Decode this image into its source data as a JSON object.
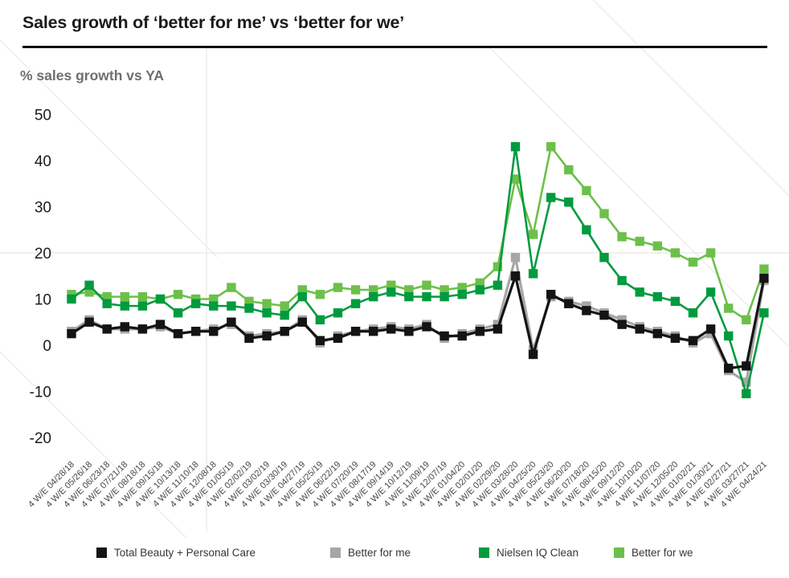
{
  "header": {
    "title": "Sales growth of ‘better for me’ vs ‘better for we’"
  },
  "chart_data": {
    "type": "line",
    "title": "Sales growth of ‘better for me’ vs ‘better for we’",
    "ylabel": "% sales growth vs YA",
    "xlabel": "",
    "ylim": [
      -20,
      50
    ],
    "yticks": [
      50,
      40,
      30,
      20,
      10,
      0,
      -10,
      -20
    ],
    "gridline_values": [
      20
    ],
    "grid": "single horizontal gridline at 20",
    "legend_position": "bottom",
    "marker": "square",
    "categories": [
      "4 W/E 04/28/18",
      "4 W/E 05/26/18",
      "4 W/E 06/23/18",
      "4 W/E 07/21/18",
      "4 W/E 08/18/18",
      "4 W/E 09/15/18",
      "4 W/E 10/13/18",
      "4 W/E 11/10/18",
      "4 W/E 12/08/18",
      "4 W/E 01/05/19",
      "4 W/E 02/02/19",
      "4 W/E 03/02/19",
      "4 W/E 03/30/19",
      "4 W/E 04/27/19",
      "4 W/E 05/25/19",
      "4 W/E 06/22/19",
      "4 W/E 07/20/19",
      "4 W/E 08/17/19",
      "4 W/E 09/14/19",
      "4 W/E 10/12/19",
      "4 W/E 11/09/19",
      "4 W/E 12/07/19",
      "4 W/E 01/04/20",
      "4 W/E 02/01/20",
      "4 W/E 02/29/20",
      "4 W/E 03/28/20",
      "4 W/E 04/25/20",
      "4 W/E 05/23/20",
      "4 W/E 06/20/20",
      "4 W/E 07/18/20",
      "4 W/E 08/15/20",
      "4 W/E 09/12/20",
      "4 W/E 10/10/20",
      "4 W/E 11/07/20",
      "4 W/E 12/05/20",
      "4 W/E 01/02/21",
      "4 W/E 01/30/21",
      "4 W/E 02/27/21",
      "4 W/E 03/27/21",
      "4 W/E 04/24/21"
    ],
    "series": [
      {
        "name": "Total Beauty + Personal Care",
        "color": "#141414",
        "values": [
          2.5,
          5,
          3.5,
          4,
          3.5,
          4.5,
          2.5,
          3,
          3,
          5,
          1.5,
          2,
          3,
          5,
          1,
          1.5,
          3,
          3,
          3.5,
          3,
          4,
          2,
          2,
          3,
          3.5,
          15,
          -2,
          11,
          9,
          7.5,
          6.5,
          4.5,
          3.5,
          2.5,
          1.5,
          1,
          3.5,
          -5,
          -4.5,
          14.5
        ]
      },
      {
        "name": "Better for me",
        "color": "#a6a6a6",
        "values": [
          3,
          5.5,
          3.5,
          3.5,
          3.5,
          4,
          2.5,
          3,
          3.5,
          4.5,
          2,
          2.5,
          3,
          5.5,
          0.5,
          2,
          3,
          3.5,
          4,
          3.5,
          4.5,
          1.5,
          2.5,
          3.5,
          4.5,
          19,
          -1,
          10.5,
          9.5,
          8.5,
          7,
          5.5,
          4,
          3,
          2,
          0.5,
          2.5,
          -5.5,
          -8,
          14
        ]
      },
      {
        "name": "Nielsen IQ Clean",
        "color": "#009b3f",
        "values": [
          10,
          13,
          9,
          8.5,
          8.5,
          10,
          7,
          9,
          8.5,
          8.5,
          8,
          7,
          6.5,
          10.5,
          5.5,
          7,
          9,
          10.5,
          11.5,
          10.5,
          10.5,
          10.5,
          11,
          12,
          13,
          43,
          15.5,
          32,
          31,
          25,
          19,
          14,
          11.5,
          10.5,
          9.5,
          7,
          11.5,
          2,
          -10.5,
          7
        ]
      },
      {
        "name": "Better for we",
        "color": "#6cc04a",
        "values": [
          11,
          11.5,
          10.5,
          10.5,
          10.5,
          10,
          11,
          10,
          10,
          12.5,
          9.5,
          9,
          8.5,
          12,
          11,
          12.5,
          12,
          12,
          13,
          12,
          13,
          12,
          12.5,
          13.5,
          17,
          36,
          24,
          43,
          38,
          33.5,
          28.5,
          23.5,
          22.5,
          21.5,
          20,
          18,
          20,
          8,
          5.5,
          16.5
        ]
      }
    ]
  },
  "style": {
    "gridline_color": "#ebebe8",
    "watermark_color": "#f2f1ee",
    "ytick_color": "#1b1b1b",
    "xtick_color": "#474747"
  }
}
